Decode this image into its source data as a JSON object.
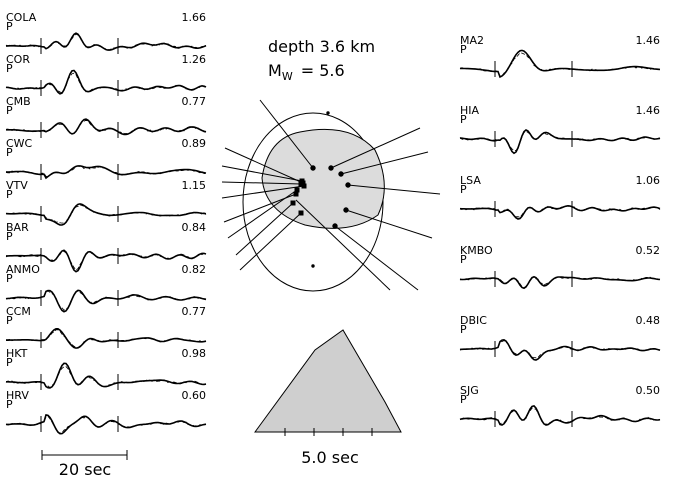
{
  "header": {
    "depth": "depth   3.6  km",
    "mw_symbol": "M",
    "mw_subscript": "W",
    "mw_value": "= 5.6"
  },
  "stations_left": [
    {
      "name": "COLA",
      "phase": "P",
      "value": "1.66"
    },
    {
      "name": "COR",
      "phase": "P",
      "value": "1.26"
    },
    {
      "name": "CMB",
      "phase": "P",
      "value": "0.77"
    },
    {
      "name": "CWC",
      "phase": "P",
      "value": "0.89"
    },
    {
      "name": "VTV",
      "phase": "P",
      "value": "1.15"
    },
    {
      "name": "BAR",
      "phase": "P",
      "value": "0.84"
    },
    {
      "name": "ANMO",
      "phase": "P",
      "value": "0.82"
    },
    {
      "name": "CCM",
      "phase": "P",
      "value": "0.77"
    },
    {
      "name": "HKT",
      "phase": "P",
      "value": "0.98"
    },
    {
      "name": "HRV",
      "phase": "P",
      "value": "0.60"
    }
  ],
  "stations_right": [
    {
      "name": "MA2",
      "phase": "P",
      "value": "1.46"
    },
    {
      "name": "HIA",
      "phase": "P",
      "value": "1.46"
    },
    {
      "name": "LSA",
      "phase": "P",
      "value": "1.06"
    },
    {
      "name": "KMBO",
      "phase": "P",
      "value": "0.52"
    },
    {
      "name": "DBIC",
      "phase": "P",
      "value": "0.48"
    },
    {
      "name": "SJG",
      "phase": "P",
      "value": "0.50"
    }
  ],
  "waveform_scale": "20 sec",
  "source_time_scale": "5.0 sec"
}
